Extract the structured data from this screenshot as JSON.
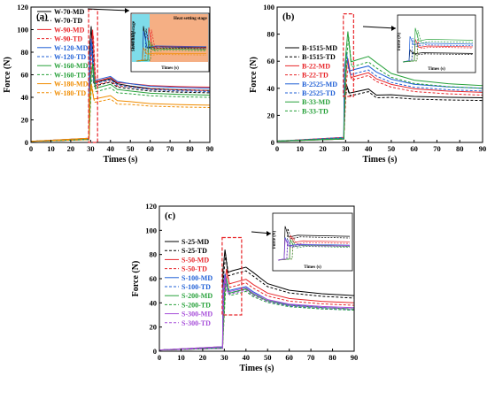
{
  "chart_data": [
    {
      "panel": "(a)",
      "type": "line",
      "xlabel": "Times (s)",
      "ylabel": "Force (N)",
      "xlim": [
        0,
        90
      ],
      "ylim": [
        0,
        120
      ],
      "xticks": [
        0,
        10,
        20,
        30,
        40,
        50,
        60,
        70,
        80,
        90
      ],
      "yticks": [
        0,
        20,
        40,
        60,
        80,
        100,
        120
      ],
      "legend_position": "upper-left",
      "inset": {
        "xlabel": "Times (s)",
        "ylabel": "Force (N)",
        "annotations": [
          "Stretching stage",
          "Heat setting stage"
        ]
      },
      "series": [
        {
          "name": "W-70-MD",
          "color": "#000000",
          "dash": false,
          "peak": 103,
          "plateau": 55,
          "final": 46
        },
        {
          "name": "W-70-TD",
          "color": "#000000",
          "dash": true,
          "peak": 97,
          "plateau": 52,
          "final": 44
        },
        {
          "name": "W-90-MD",
          "color": "#e8262a",
          "dash": false,
          "peak": 100,
          "plateau": 56,
          "final": 49
        },
        {
          "name": "W-90-TD",
          "color": "#e8262a",
          "dash": true,
          "peak": 95,
          "plateau": 53,
          "final": 46
        },
        {
          "name": "W-120-MD",
          "color": "#1f5fd6",
          "dash": false,
          "peak": 92,
          "plateau": 57,
          "final": 48
        },
        {
          "name": "W-120-TD",
          "color": "#1f5fd6",
          "dash": true,
          "peak": 88,
          "plateau": 54,
          "final": 45
        },
        {
          "name": "W-160-MD",
          "color": "#27a13a",
          "dash": false,
          "peak": 70,
          "plateau": 50,
          "final": 42
        },
        {
          "name": "W-160-TD",
          "color": "#27a13a",
          "dash": true,
          "peak": 65,
          "plateau": 47,
          "final": 40
        },
        {
          "name": "W-180-MD",
          "color": "#f08c00",
          "dash": false,
          "peak": 52,
          "plateau": 40,
          "final": 33
        },
        {
          "name": "W-180-TD",
          "color": "#f08c00",
          "dash": true,
          "peak": 50,
          "plateau": 37,
          "final": 31
        }
      ]
    },
    {
      "panel": "(b)",
      "type": "line",
      "xlabel": "Times (s)",
      "ylabel": "Force (N)",
      "xlim": [
        0,
        90
      ],
      "ylim": [
        0,
        100
      ],
      "xticks": [
        0,
        10,
        20,
        30,
        40,
        50,
        60,
        70,
        80,
        90
      ],
      "yticks": [
        0,
        20,
        40,
        60,
        80,
        100
      ],
      "legend_position": "center-left",
      "inset": {
        "xlabel": "Times (s)",
        "ylabel": "Force (N)",
        "annotations": []
      },
      "series": [
        {
          "name": "B-1515-MD",
          "color": "#000000",
          "dash": false,
          "peak": 43,
          "plateau": 38,
          "final": 33
        },
        {
          "name": "B-1515-TD",
          "color": "#000000",
          "dash": true,
          "peak": 40,
          "plateau": 36,
          "final": 31
        },
        {
          "name": "B-22-MD",
          "color": "#e8262a",
          "dash": false,
          "peak": 62,
          "plateau": 50,
          "final": 37
        },
        {
          "name": "B-22-TD",
          "color": "#e8262a",
          "dash": true,
          "peak": 58,
          "plateau": 48,
          "final": 35
        },
        {
          "name": "B-2525-MD",
          "color": "#1f5fd6",
          "dash": false,
          "peak": 67,
          "plateau": 55,
          "final": 40
        },
        {
          "name": "B-2525-TD",
          "color": "#1f5fd6",
          "dash": true,
          "peak": 64,
          "plateau": 52,
          "final": 38
        },
        {
          "name": "B-33-MD",
          "color": "#27a13a",
          "dash": false,
          "peak": 82,
          "plateau": 62,
          "final": 42
        },
        {
          "name": "B-33-TD",
          "color": "#27a13a",
          "dash": true,
          "peak": 78,
          "plateau": 58,
          "final": 40
        }
      ]
    },
    {
      "panel": "(c)",
      "type": "line",
      "xlabel": "Times (s)",
      "ylabel": "Force (N)",
      "xlim": [
        0,
        90
      ],
      "ylim": [
        0,
        120
      ],
      "xticks": [
        0,
        10,
        20,
        30,
        40,
        50,
        60,
        70,
        80,
        90
      ],
      "yticks": [
        0,
        20,
        40,
        60,
        80,
        100,
        120
      ],
      "legend_position": "center-left",
      "inset": {
        "xlabel": "Times (s)",
        "ylabel": "Force (N)",
        "annotations": []
      },
      "series": [
        {
          "name": "S-25-MD",
          "color": "#000000",
          "dash": false,
          "peak": 84,
          "plateau": 68,
          "final": 46
        },
        {
          "name": "S-25-TD",
          "color": "#000000",
          "dash": true,
          "peak": 80,
          "plateau": 65,
          "final": 44
        },
        {
          "name": "S-50-MD",
          "color": "#e8262a",
          "dash": false,
          "peak": 68,
          "plateau": 58,
          "final": 40
        },
        {
          "name": "S-50-TD",
          "color": "#e8262a",
          "dash": true,
          "peak": 64,
          "plateau": 55,
          "final": 38
        },
        {
          "name": "S-100-MD",
          "color": "#1f5fd6",
          "dash": false,
          "peak": 64,
          "plateau": 52,
          "final": 35
        },
        {
          "name": "S-100-TD",
          "color": "#1f5fd6",
          "dash": true,
          "peak": 60,
          "plateau": 50,
          "final": 34
        },
        {
          "name": "S-200-MD",
          "color": "#27a13a",
          "dash": false,
          "peak": 60,
          "plateau": 50,
          "final": 35
        },
        {
          "name": "S-200-TD",
          "color": "#27a13a",
          "dash": true,
          "peak": 58,
          "plateau": 48,
          "final": 34
        },
        {
          "name": "S-300-MD",
          "color": "#a64dd9",
          "dash": false,
          "peak": 62,
          "plateau": 51,
          "final": 36
        },
        {
          "name": "S-300-TD",
          "color": "#a64dd9",
          "dash": true,
          "peak": 59,
          "plateau": 49,
          "final": 35
        }
      ]
    }
  ]
}
